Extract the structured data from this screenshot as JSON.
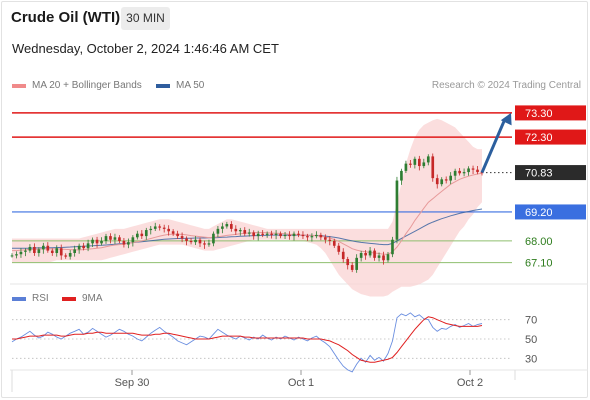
{
  "header": {
    "title": "Crude Oil (WTI)",
    "timeframe": "30 MIN",
    "datetime": "Wednesday, October 2, 2024 1:46:46 AM CET"
  },
  "legend": {
    "items": [
      {
        "label": "MA 20 + Bollinger Bands",
        "color": "#f08a8a"
      },
      {
        "label": "MA 50",
        "color": "#2f5d9e"
      }
    ],
    "credit": "Research © 2024 Trading Central"
  },
  "rsi_legend": {
    "items": [
      {
        "label": "RSI",
        "color": "#5b7fd6"
      },
      {
        "label": "9MA",
        "color": "#e02020"
      }
    ]
  },
  "colors": {
    "resistance": "#e01818",
    "pivot": "#3a6fe0",
    "support": "#8fbf6f",
    "arrow": "#2c5f9e",
    "bollinger_fill": "#f9d3d3",
    "up_candle": "#2e7d32",
    "down_candle": "#c62828"
  },
  "chart_data": [
    {
      "type": "candlestick",
      "ylim": [
        66.3,
        74.0
      ],
      "x_ticks": [
        "Sep 30",
        "Oct 1",
        "Oct 2"
      ],
      "levels": [
        {
          "value": 73.3,
          "label": "73.30",
          "kind": "resistance"
        },
        {
          "value": 72.3,
          "label": "72.30",
          "kind": "resistance"
        },
        {
          "value": 70.83,
          "label": "70.83",
          "kind": "last"
        },
        {
          "value": 69.2,
          "label": "69.20",
          "kind": "pivot"
        },
        {
          "value": 68.0,
          "label": "68.00",
          "kind": "support"
        },
        {
          "value": 67.1,
          "label": "67.10",
          "kind": "support"
        }
      ],
      "arrow": {
        "from": 70.83,
        "to": 73.3
      },
      "prices": [
        67.4,
        67.45,
        67.55,
        67.6,
        67.75,
        67.5,
        67.65,
        67.8,
        67.6,
        67.5,
        67.7,
        67.4,
        67.35,
        67.5,
        67.65,
        67.8,
        67.7,
        67.9,
        68.05,
        67.9,
        68.0,
        68.2,
        68.05,
        68.15,
        68.0,
        67.85,
        67.95,
        68.15,
        68.3,
        68.2,
        68.45,
        68.5,
        68.6,
        68.55,
        68.5,
        68.4,
        68.3,
        68.2,
        68.1,
        68.0,
        67.95,
        68.05,
        67.9,
        67.85,
        67.9,
        68.3,
        68.5,
        68.6,
        68.7,
        68.5,
        68.4,
        68.45,
        68.3,
        68.35,
        68.2,
        68.3,
        68.25,
        68.3,
        68.25,
        68.3,
        68.2,
        68.25,
        68.2,
        68.3,
        68.25,
        68.2,
        68.15,
        68.2,
        68.25,
        68.15,
        68.05,
        68.0,
        67.8,
        67.55,
        67.25,
        67.0,
        66.8,
        67.3,
        67.5,
        67.4,
        67.6,
        67.3,
        67.4,
        67.2,
        67.45,
        68.05,
        70.5,
        70.9,
        71.2,
        71.15,
        71.4,
        71.1,
        71.25,
        71.5,
        70.6,
        70.35,
        70.55,
        70.5,
        70.7,
        70.9,
        70.8,
        70.85,
        71.0,
        70.95,
        70.85,
        70.83
      ],
      "ma20": [
        67.6,
        67.6,
        67.62,
        67.63,
        67.65,
        67.65,
        67.66,
        67.67,
        67.67,
        67.67,
        67.67,
        67.66,
        67.65,
        67.64,
        67.63,
        67.63,
        67.64,
        67.66,
        67.68,
        67.7,
        67.72,
        67.76,
        67.8,
        67.83,
        67.85,
        67.87,
        67.9,
        67.93,
        67.97,
        68.0,
        68.05,
        68.1,
        68.15,
        68.2,
        68.24,
        68.27,
        68.28,
        68.28,
        68.27,
        68.25,
        68.22,
        68.2,
        68.18,
        68.16,
        68.14,
        68.15,
        68.17,
        68.2,
        68.23,
        68.25,
        68.27,
        68.3,
        68.32,
        68.33,
        68.34,
        68.35,
        68.35,
        68.34,
        68.33,
        68.32,
        68.31,
        68.3,
        68.28,
        68.27,
        68.26,
        68.25,
        68.24,
        68.23,
        68.22,
        68.2,
        68.16,
        68.12,
        68.06,
        67.98,
        67.88,
        67.78,
        67.68,
        67.62,
        67.58,
        67.55,
        67.52,
        67.5,
        67.48,
        67.45,
        67.45,
        67.55,
        67.75,
        68.0,
        68.3,
        68.55,
        68.85,
        69.1,
        69.35,
        69.6,
        69.75,
        69.9,
        70.05,
        70.2,
        70.35,
        70.45,
        70.55,
        70.62,
        70.68,
        70.73,
        70.77,
        70.8
      ],
      "ma50": [
        67.7,
        67.7,
        67.7,
        67.7,
        67.7,
        67.71,
        67.71,
        67.72,
        67.72,
        67.72,
        67.73,
        67.73,
        67.74,
        67.75,
        67.76,
        67.77,
        67.78,
        67.79,
        67.8,
        67.81,
        67.82,
        67.83,
        67.85,
        67.86,
        67.88,
        67.89,
        67.91,
        67.93,
        67.95,
        67.97,
        67.99,
        68.01,
        68.03,
        68.05,
        68.07,
        68.08,
        68.09,
        68.1,
        68.1,
        68.11,
        68.11,
        68.12,
        68.12,
        68.12,
        68.13,
        68.13,
        68.14,
        68.15,
        68.16,
        68.17,
        68.18,
        68.19,
        68.2,
        68.21,
        68.22,
        68.22,
        68.23,
        68.23,
        68.24,
        68.24,
        68.24,
        68.24,
        68.24,
        68.24,
        68.24,
        68.24,
        68.23,
        68.23,
        68.22,
        68.22,
        68.2,
        68.18,
        68.15,
        68.12,
        68.08,
        68.04,
        68.0,
        67.97,
        67.94,
        67.92,
        67.9,
        67.88,
        67.86,
        67.85,
        67.85,
        67.9,
        68.0,
        68.1,
        68.2,
        68.3,
        68.4,
        68.5,
        68.6,
        68.7,
        68.78,
        68.85,
        68.92,
        68.98,
        69.04,
        69.09,
        69.14,
        69.18,
        69.22,
        69.26,
        69.29,
        69.32
      ],
      "bollinger_upper": [
        68.1,
        68.1,
        68.1,
        68.1,
        68.1,
        68.1,
        68.1,
        68.1,
        68.1,
        68.1,
        68.1,
        68.1,
        68.1,
        68.1,
        68.1,
        68.1,
        68.15,
        68.2,
        68.25,
        68.3,
        68.35,
        68.4,
        68.45,
        68.5,
        68.5,
        68.5,
        68.55,
        68.6,
        68.65,
        68.7,
        68.75,
        68.8,
        68.85,
        68.9,
        68.9,
        68.9,
        68.85,
        68.8,
        68.75,
        68.7,
        68.65,
        68.6,
        68.55,
        68.5,
        68.5,
        68.6,
        68.7,
        68.8,
        68.9,
        68.9,
        68.85,
        68.8,
        68.75,
        68.7,
        68.65,
        68.6,
        68.55,
        68.5,
        68.5,
        68.5,
        68.5,
        68.5,
        68.5,
        68.5,
        68.5,
        68.5,
        68.5,
        68.5,
        68.5,
        68.5,
        68.5,
        68.5,
        68.5,
        68.5,
        68.5,
        68.5,
        68.5,
        68.5,
        68.5,
        68.5,
        68.5,
        68.5,
        68.5,
        68.5,
        68.5,
        68.8,
        69.6,
        70.4,
        71.2,
        71.8,
        72.3,
        72.6,
        72.8,
        72.9,
        73.0,
        73.05,
        73.0,
        72.9,
        72.8,
        72.7,
        72.5,
        72.3,
        72.1,
        71.9,
        71.8,
        71.8
      ],
      "bollinger_lower": [
        67.1,
        67.1,
        67.1,
        67.1,
        67.1,
        67.1,
        67.1,
        67.1,
        67.1,
        67.15,
        67.2,
        67.2,
        67.2,
        67.2,
        67.2,
        67.2,
        67.2,
        67.2,
        67.2,
        67.2,
        67.2,
        67.25,
        67.3,
        67.35,
        67.4,
        67.45,
        67.5,
        67.55,
        67.6,
        67.65,
        67.7,
        67.75,
        67.8,
        67.85,
        67.85,
        67.85,
        67.85,
        67.85,
        67.85,
        67.8,
        67.75,
        67.7,
        67.65,
        67.6,
        67.6,
        67.6,
        67.65,
        67.7,
        67.75,
        67.8,
        67.85,
        67.9,
        67.95,
        68.0,
        68.05,
        68.05,
        68.05,
        68.05,
        68.05,
        68.05,
        68.05,
        68.05,
        68.05,
        68.0,
        68.0,
        68.0,
        67.95,
        67.9,
        67.85,
        67.7,
        67.5,
        67.2,
        66.9,
        66.6,
        66.4,
        66.2,
        66.0,
        65.9,
        65.8,
        65.75,
        65.7,
        65.7,
        65.7,
        65.7,
        65.75,
        65.9,
        66.0,
        66.1,
        66.1,
        66.1,
        66.15,
        66.2,
        66.3,
        66.4,
        66.6,
        66.9,
        67.2,
        67.5,
        67.8,
        68.1,
        68.4,
        68.6,
        68.9,
        69.1,
        69.4,
        69.6
      ]
    },
    {
      "type": "line",
      "name": "RSI panel",
      "ylim": [
        20,
        80
      ],
      "y_ticks": [
        70,
        50,
        30
      ],
      "rsi": [
        47,
        50,
        52,
        55,
        58,
        54,
        51,
        53,
        57,
        55,
        52,
        50,
        53,
        56,
        58,
        60,
        55,
        57,
        61,
        58,
        55,
        52,
        54,
        57,
        60,
        58,
        55,
        53,
        50,
        48,
        52,
        56,
        59,
        62,
        58,
        55,
        52,
        48,
        46,
        44,
        47,
        50,
        53,
        52,
        50,
        55,
        60,
        57,
        54,
        52,
        50,
        53,
        51,
        49,
        52,
        50,
        54,
        51,
        49,
        52,
        50,
        53,
        51,
        49,
        52,
        50,
        48,
        51,
        53,
        49,
        46,
        42,
        35,
        28,
        22,
        18,
        16,
        24,
        30,
        26,
        33,
        28,
        31,
        27,
        35,
        48,
        72,
        76,
        74,
        77,
        73,
        75,
        71,
        70,
        62,
        58,
        61,
        60,
        63,
        65,
        62,
        64,
        66,
        63,
        65,
        66
      ],
      "ma9": [
        50,
        50,
        51,
        52,
        53,
        53,
        53,
        54,
        54,
        54,
        54,
        53,
        53,
        54,
        55,
        55,
        55,
        56,
        56,
        57,
        57,
        56,
        56,
        56,
        56,
        56,
        56,
        56,
        55,
        54,
        54,
        54,
        55,
        55,
        56,
        56,
        55,
        54,
        53,
        52,
        51,
        50,
        50,
        50,
        50,
        51,
        52,
        53,
        53,
        53,
        53,
        53,
        52,
        52,
        51,
        51,
        51,
        51,
        51,
        51,
        51,
        51,
        51,
        51,
        51,
        51,
        50,
        50,
        50,
        50,
        49,
        48,
        46,
        44,
        41,
        38,
        34,
        31,
        28,
        27,
        26,
        26,
        27,
        28,
        29,
        31,
        36,
        42,
        48,
        54,
        60,
        65,
        70,
        73,
        72,
        70,
        68,
        66,
        65,
        64,
        63,
        63,
        63,
        63,
        63,
        64
      ]
    }
  ]
}
